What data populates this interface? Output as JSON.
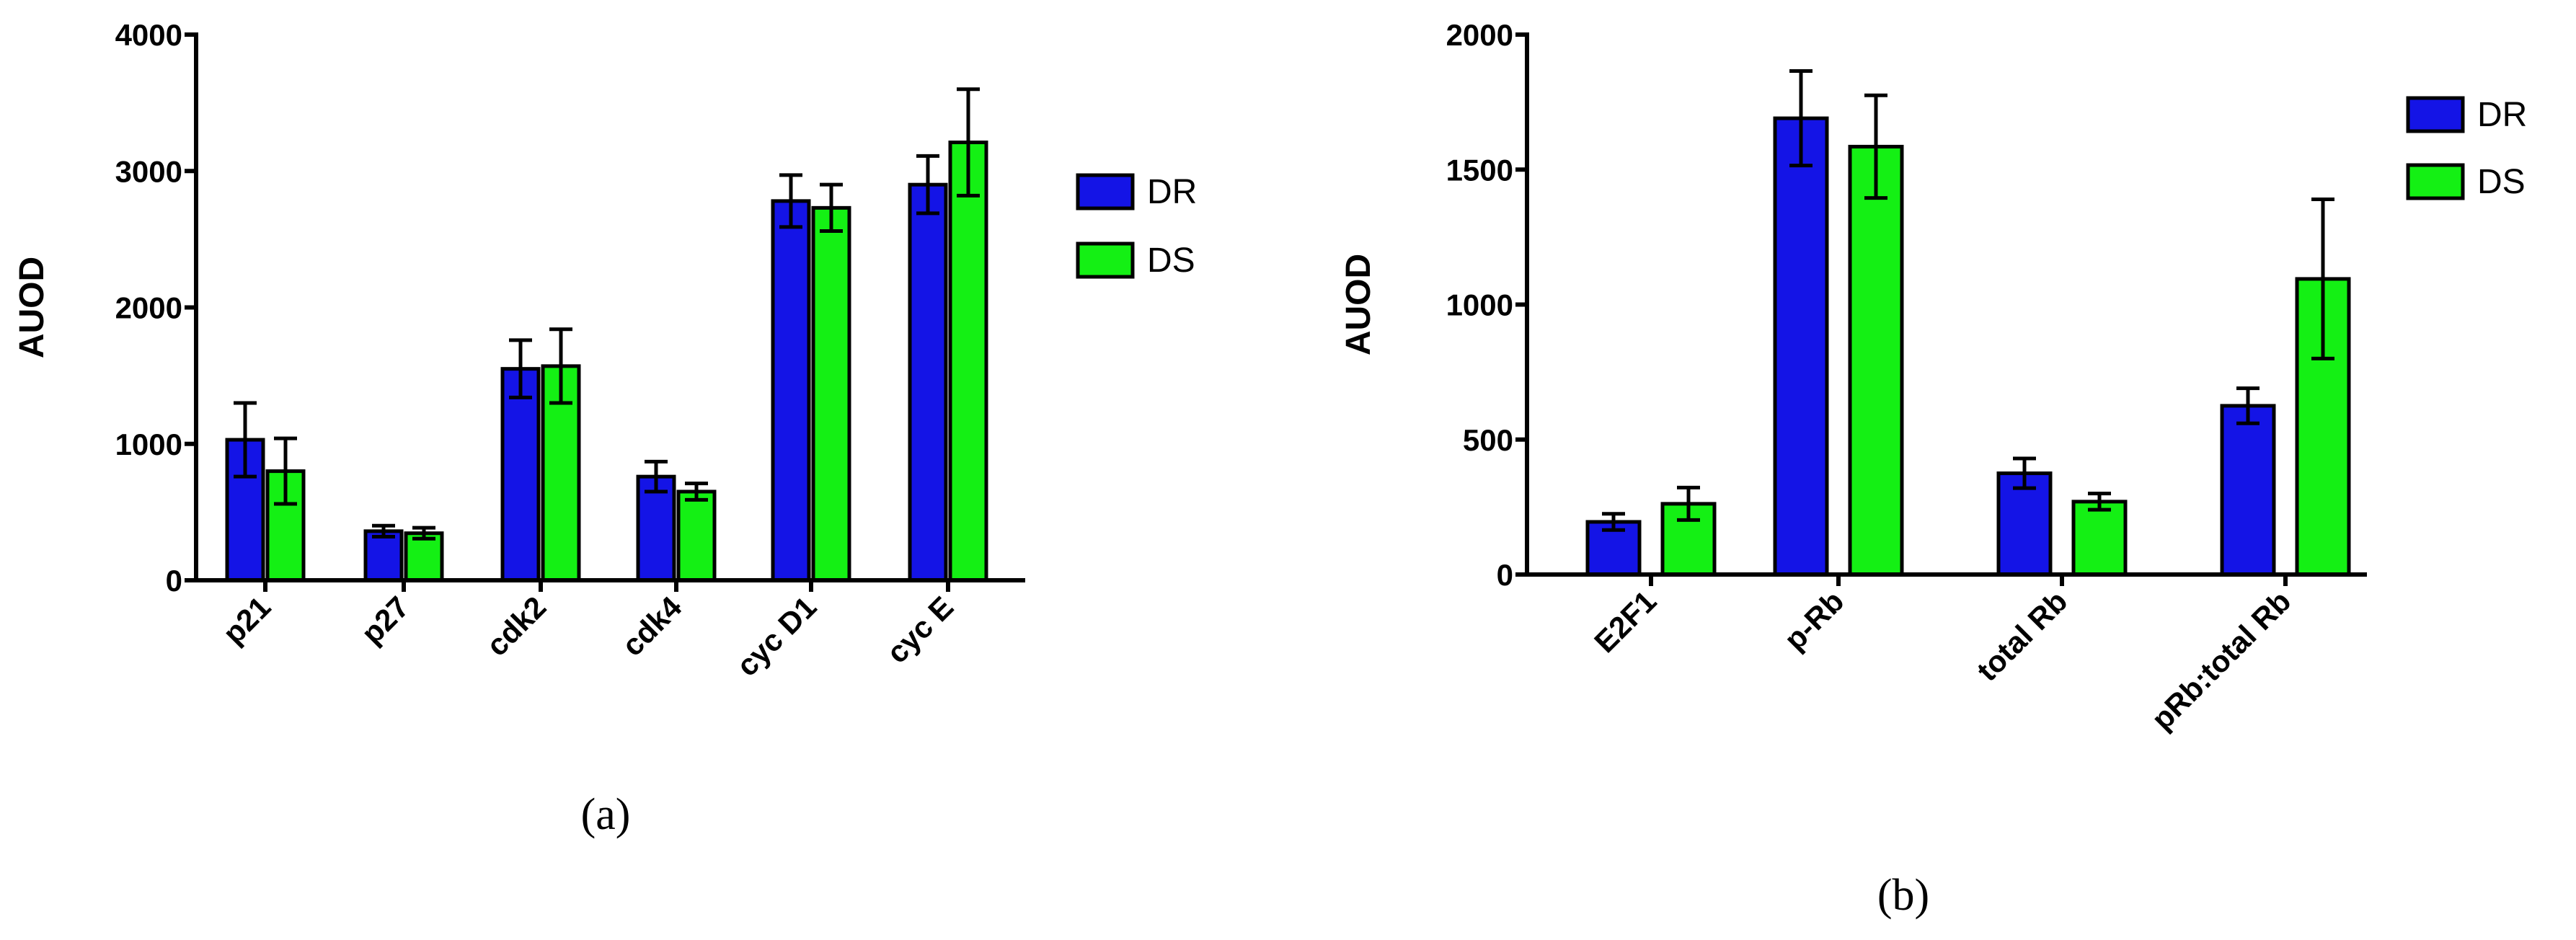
{
  "colors": {
    "DR": "#1414e6",
    "DS": "#14f014",
    "axis": "#000000"
  },
  "panels": [
    {
      "caption": "(a)"
    },
    {
      "caption": "(b)"
    }
  ],
  "chart_data": [
    {
      "type": "bar",
      "title": "",
      "xlabel": "",
      "ylabel": "AUOD",
      "ylim": [
        0,
        4000
      ],
      "yticks": [
        0,
        1000,
        2000,
        3000,
        4000
      ],
      "legend_position": "right",
      "error_bars": true,
      "categories": [
        "p21",
        "p27",
        "cdk2",
        "cdk4",
        "cyc D1",
        "cyc E"
      ],
      "series": [
        {
          "name": "DR",
          "values": [
            1030,
            360,
            1550,
            760,
            2780,
            2900
          ],
          "errors": [
            270,
            40,
            210,
            110,
            190,
            210
          ]
        },
        {
          "name": "DS",
          "values": [
            800,
            345,
            1570,
            650,
            2730,
            3210
          ],
          "errors": [
            240,
            40,
            270,
            60,
            170,
            390
          ]
        }
      ]
    },
    {
      "type": "bar",
      "title": "",
      "xlabel": "",
      "ylabel": "AUOD",
      "ylim": [
        0,
        2000
      ],
      "yticks": [
        0,
        500,
        1000,
        1500,
        2000
      ],
      "legend_position": "top-right",
      "error_bars": true,
      "categories": [
        "E2F1",
        "p-Rb",
        "total Rb",
        "pRb:total Rb"
      ],
      "series": [
        {
          "name": "DR",
          "values": [
            195,
            1690,
            375,
            625
          ],
          "errors": [
            30,
            175,
            55,
            65
          ]
        },
        {
          "name": "DS",
          "values": [
            262,
            1585,
            270,
            1095
          ],
          "errors": [
            60,
            190,
            30,
            295
          ]
        }
      ]
    }
  ]
}
